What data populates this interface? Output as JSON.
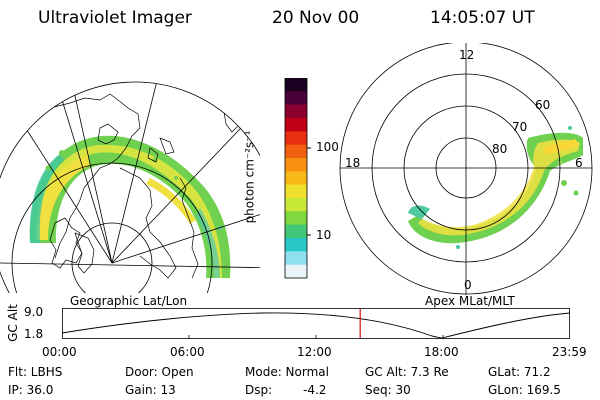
{
  "header": {
    "title": "Ultraviolet Imager",
    "date": "20 Nov 00",
    "time": "14:05:07 UT"
  },
  "colorbar": {
    "label": "photon cm⁻²s⁻¹",
    "tick_100": "100",
    "tick_10": "10",
    "colors_top_to_bottom": [
      "#1a0020",
      "#4a0038",
      "#8a0030",
      "#c00018",
      "#e83010",
      "#f06010",
      "#f89010",
      "#f8b818",
      "#f0e030",
      "#c8e838",
      "#80d840",
      "#40c878",
      "#28c8c8",
      "#8ee0f0",
      "#e8f4f8"
    ]
  },
  "left_map": {
    "caption": "Geographic Lat/Lon"
  },
  "right_map": {
    "caption": "Apex MLat/MLT",
    "labels": {
      "top": "12",
      "left": "18",
      "right": "6",
      "bottom": "0"
    },
    "rings": [
      "60",
      "70",
      "80"
    ]
  },
  "timeline": {
    "axis_label": "GC Alt",
    "y_top": "9.0",
    "y_bottom": "1.8",
    "ticks": [
      "00:00",
      "06:00",
      "12:00",
      "18:00",
      "23:59"
    ],
    "current_time_fraction": 0.587,
    "marker_color": "#d01010"
  },
  "status": {
    "flt": "Flt: LBHS",
    "ip": "IP: 36.0",
    "door": "Door: Open",
    "gain": "Gain: 13",
    "mode": "Mode: Normal",
    "dsp": "Dsp:",
    "dsp_value": "-4.2",
    "gc_alt": "GC Alt: 7.3 Re",
    "seq": "Seq: 30",
    "glat": "GLat: 71.2",
    "glon": "GLon: 169.5"
  }
}
